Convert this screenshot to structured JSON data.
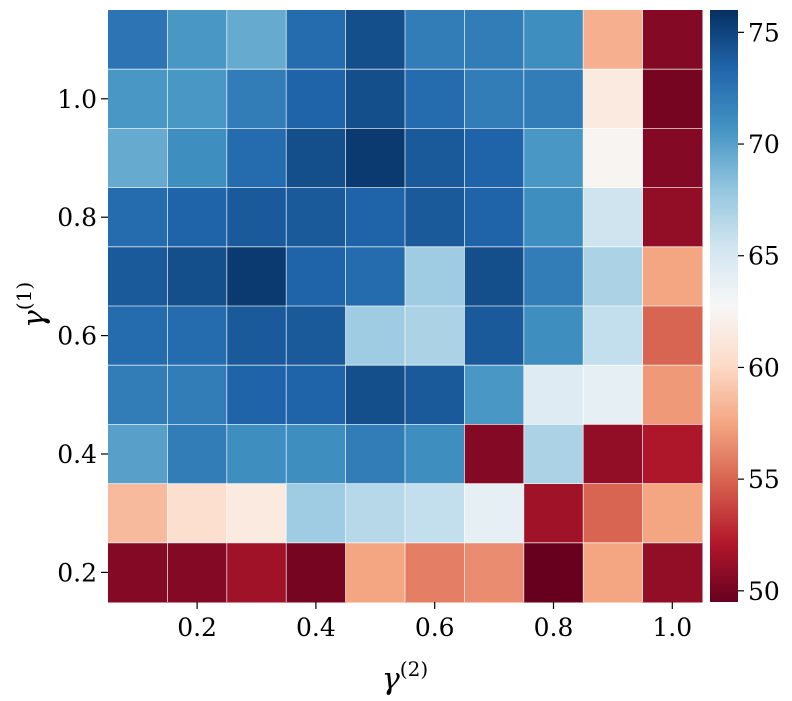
{
  "chart_data": {
    "type": "heatmap",
    "title": "",
    "xlabel": "γ",
    "xlabel_superscript": "(2)",
    "ylabel": "γ",
    "ylabel_superscript": "(1)",
    "x_values": [
      0.1,
      0.2,
      0.3,
      0.4,
      0.5,
      0.6,
      0.7,
      0.8,
      0.9,
      1.0
    ],
    "y_values_top_to_bottom": [
      1.1,
      1.0,
      0.9,
      0.8,
      0.7,
      0.6,
      0.5,
      0.4,
      0.3,
      0.2
    ],
    "x_ticks": [
      {
        "value": 0.2,
        "label": "0.2"
      },
      {
        "value": 0.4,
        "label": "0.4"
      },
      {
        "value": 0.6,
        "label": "0.6"
      },
      {
        "value": 0.8,
        "label": "0.8"
      },
      {
        "value": 1.0,
        "label": "1.0"
      }
    ],
    "y_ticks": [
      {
        "value": 1.0,
        "label": "1.0"
      },
      {
        "value": 0.8,
        "label": "0.8"
      },
      {
        "value": 0.6,
        "label": "0.6"
      },
      {
        "value": 0.4,
        "label": "0.4"
      },
      {
        "value": 0.2,
        "label": "0.2"
      }
    ],
    "values": [
      [
        72.5,
        70.5,
        69.5,
        73,
        74.5,
        72,
        72,
        71,
        58,
        50.5
      ],
      [
        70.5,
        70.5,
        72,
        73.5,
        74.5,
        73,
        72,
        72,
        61.5,
        50
      ],
      [
        69.5,
        71,
        73,
        74.5,
        75.5,
        74,
        73.5,
        70.5,
        62.5,
        50.5
      ],
      [
        73,
        73.5,
        74,
        74,
        73.5,
        74,
        73.5,
        71,
        65.5,
        51
      ],
      [
        74,
        74.5,
        75.5,
        73.5,
        73,
        67.5,
        74.5,
        72,
        67,
        57.5
      ],
      [
        73,
        73,
        74,
        74,
        67.5,
        67,
        74,
        71,
        66,
        55
      ],
      [
        72,
        72,
        73.5,
        73.5,
        74.5,
        74,
        70.5,
        64.5,
        64,
        57
      ],
      [
        70,
        72,
        71,
        71,
        72,
        71,
        50.5,
        67,
        51,
        52
      ],
      [
        58.5,
        60.5,
        61.5,
        67.5,
        66.5,
        66,
        64,
        51.5,
        55,
        57.5
      ],
      [
        50.5,
        50.5,
        51.5,
        50,
        57.5,
        56,
        56.5,
        49.5,
        57.5,
        51
      ]
    ],
    "colormap": "RdBu",
    "colorbar": {
      "min": 49.5,
      "max": 76,
      "ticks": [
        {
          "value": 50,
          "label": "50"
        },
        {
          "value": 55,
          "label": "55"
        },
        {
          "value": 60,
          "label": "60"
        },
        {
          "value": 65,
          "label": "65"
        },
        {
          "value": 70,
          "label": "70"
        },
        {
          "value": 75,
          "label": "75"
        }
      ],
      "colors": [
        "#67001f",
        "#b2182b",
        "#d6604d",
        "#f4a582",
        "#fddbc7",
        "#f7f7f7",
        "#d1e5f0",
        "#92c5de",
        "#4393c3",
        "#2166ac",
        "#053061"
      ]
    },
    "grid_line_color": "#ffffff"
  }
}
